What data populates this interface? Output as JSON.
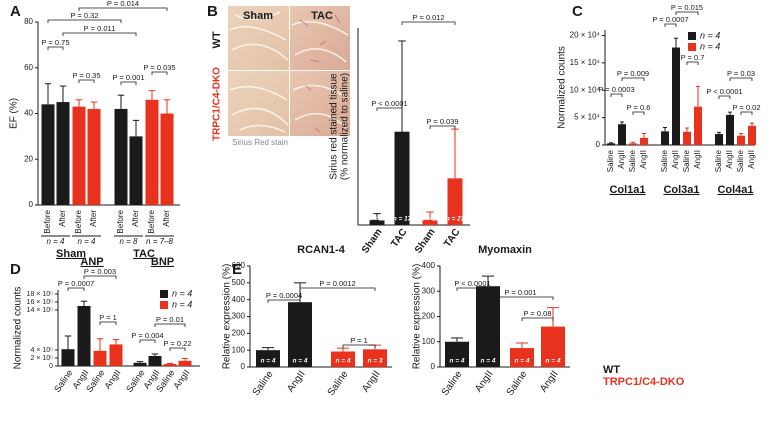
{
  "chart_data": [
    {
      "type": "bar",
      "panel": "A",
      "ylabel": "EF (%)",
      "categories": [
        "Before",
        "After",
        "Before",
        "After",
        "Before",
        "After",
        "Before",
        "After"
      ],
      "values": [
        44,
        45,
        43,
        42,
        42,
        30,
        46,
        40
      ],
      "errors": [
        9,
        7,
        3,
        3,
        6,
        7,
        4,
        6
      ],
      "colors": [
        "#1a1a1a",
        "#1a1a1a",
        "#e8321e",
        "#e8321e",
        "#1a1a1a",
        "#1a1a1a",
        "#e8321e",
        "#e8321e"
      ],
      "ylim": [
        0,
        80
      ],
      "yticks": [
        0,
        20,
        40,
        60,
        80
      ],
      "groups": [
        {
          "label": "Sham",
          "n_labels": [
            "n = 4",
            "n = 4"
          ]
        },
        {
          "label": "TAC",
          "n_labels": [
            "n = 8",
            "n = 7–8"
          ]
        }
      ],
      "p_values": [
        "P = 0.014",
        "P = 0.32",
        "P = 0.011",
        "P = 0.75",
        "P = 0.35",
        "P = 0.001",
        "P = 0.035"
      ]
    },
    {
      "type": "bar",
      "panel": "B",
      "ylabel": [
        "Sirius red stained tissue",
        "(% normalized to saline)"
      ],
      "categories": [
        "Sham",
        "TAC",
        "Sham",
        "TAC"
      ],
      "values": [
        10,
        180,
        10,
        90
      ],
      "errors": [
        12,
        175,
        15,
        95
      ],
      "colors": [
        "#1a1a1a",
        "#1a1a1a",
        "#e8321e",
        "#e8321e"
      ],
      "ylim": [
        0,
        380
      ],
      "bar_labels": [
        "n = 12",
        "n = 17",
        "n = 12",
        "n = 21"
      ],
      "p_values": [
        "P < 0.0001",
        "P = 0.012",
        "P = 0.039"
      ],
      "image_labels": {
        "columns": [
          "Sham",
          "TAC"
        ],
        "rows": [
          "WT",
          "TRPC1/C4-DKO"
        ],
        "caption": "Sirius Red stain"
      }
    },
    {
      "type": "bar",
      "panel": "C",
      "ylabel": "Normalized counts",
      "categories": [
        "Saline",
        "AngII",
        "Saline",
        "AngII",
        "Saline",
        "AngII",
        "Saline",
        "AngII",
        "Saline",
        "AngII",
        "Saline",
        "AngII"
      ],
      "values": [
        3000,
        38000,
        3000,
        13000,
        25000,
        178000,
        24000,
        70000,
        20000,
        55000,
        17000,
        35000
      ],
      "errors": [
        1000,
        4000,
        2000,
        8000,
        7000,
        17000,
        7000,
        37000,
        3000,
        5000,
        4000,
        5000
      ],
      "colors": [
        "#1a1a1a",
        "#1a1a1a",
        "#e8321e",
        "#e8321e",
        "#1a1a1a",
        "#1a1a1a",
        "#e8321e",
        "#e8321e",
        "#1a1a1a",
        "#1a1a1a",
        "#e8321e",
        "#e8321e"
      ],
      "ylim": [
        0,
        210000
      ],
      "yticks": [
        0,
        {
          "value": 50000,
          "label": "5 × 10⁴"
        },
        {
          "value": 100000,
          "label": "10 × 10⁴"
        },
        {
          "value": 150000,
          "label": "15 × 10⁴"
        },
        {
          "value": 200000,
          "label": "20 × 10⁴"
        }
      ],
      "groups": [
        {
          "label": "Col1a1"
        },
        {
          "label": "Col3a1"
        },
        {
          "label": "Col4a1"
        }
      ],
      "legend": [
        {
          "name": "n = 4",
          "color": "#1a1a1a"
        },
        {
          "name": "n = 4",
          "color": "#e8321e"
        }
      ],
      "p_values": [
        "P = 0.0003",
        "P = 0.6",
        "P = 0.009",
        "P = 0.0007",
        "P = 0.7",
        "P = 0.015",
        "P < 0.0001",
        "P = 0.02",
        "P = 0.03"
      ]
    },
    {
      "type": "bar",
      "panel": "D",
      "ylabel": "Normalized counts",
      "categories": [
        "Saline",
        "AngII",
        "Saline",
        "AngII",
        "Saline",
        "AngII",
        "Saline",
        "AngII"
      ],
      "values": [
        420000,
        1500000,
        380000,
        540000,
        80000,
        250000,
        50000,
        130000
      ],
      "errors": [
        330000,
        120000,
        300000,
        120000,
        30000,
        50000,
        15000,
        60000
      ],
      "colors": [
        "#1a1a1a",
        "#1a1a1a",
        "#e8321e",
        "#e8321e",
        "#1a1a1a",
        "#1a1a1a",
        "#e8321e",
        "#e8321e"
      ],
      "ylim": [
        0,
        1900000
      ],
      "yticks": [
        0,
        {
          "value": 200000,
          "label": "2 × 10⁵"
        },
        {
          "value": 400000,
          "label": "4 × 10⁵"
        },
        {
          "value": 1400000,
          "label": "14 × 10⁵"
        },
        {
          "value": 1600000,
          "label": "16 × 10⁵"
        },
        {
          "value": 1800000,
          "label": "18 × 10⁵"
        }
      ],
      "groups": [
        {
          "label": "ANP"
        },
        {
          "label": "BNP"
        }
      ],
      "legend": [
        {
          "name": "n = 4",
          "color": "#1a1a1a"
        },
        {
          "name": "n = 4",
          "color": "#e8321e"
        }
      ],
      "p_values": [
        "P = 0.0007",
        "P = 0.003",
        "P = 1",
        "P = 0.004",
        "P = 0.01",
        "P = 0.22"
      ]
    },
    {
      "type": "bar",
      "panel": "E",
      "title": "RCAN1-4",
      "ylabel": "Relative expression (%)",
      "categories": [
        "Saline",
        "AngII",
        "Saline",
        "AngII"
      ],
      "values": [
        100,
        385,
        92,
        105
      ],
      "errors": [
        15,
        115,
        20,
        25
      ],
      "colors": [
        "#1a1a1a",
        "#1a1a1a",
        "#e8321e",
        "#e8321e"
      ],
      "ylim": [
        0,
        600
      ],
      "yticks": [
        0,
        100,
        200,
        300,
        400,
        500,
        600
      ],
      "bar_labels": [
        "n = 4",
        "n = 4",
        "n = 4",
        "n = 3"
      ],
      "p_values": [
        "P = 0.0004",
        "P = 0.0012",
        "P = 1"
      ]
    },
    {
      "type": "bar",
      "title": "Myomaxin",
      "ylabel": "Relative expression (%)",
      "categories": [
        "Saline",
        "AngII",
        "Saline",
        "AngII"
      ],
      "values": [
        100,
        320,
        75,
        160
      ],
      "errors": [
        15,
        40,
        20,
        75
      ],
      "colors": [
        "#1a1a1a",
        "#1a1a1a",
        "#e8321e",
        "#e8321e"
      ],
      "ylim": [
        0,
        400
      ],
      "yticks": [
        0,
        100,
        200,
        300,
        400
      ],
      "bar_labels": [
        "n = 4",
        "n = 4",
        "n = 4",
        "n = 4"
      ],
      "p_values": [
        "P < 0.0001",
        "P = 0.001",
        "P = 0.08"
      ],
      "legend": [
        {
          "name": "WT",
          "color": "#1a1a1a"
        },
        {
          "name": "TRPC1/C4-DKO",
          "color": "#e8321e"
        }
      ]
    }
  ]
}
